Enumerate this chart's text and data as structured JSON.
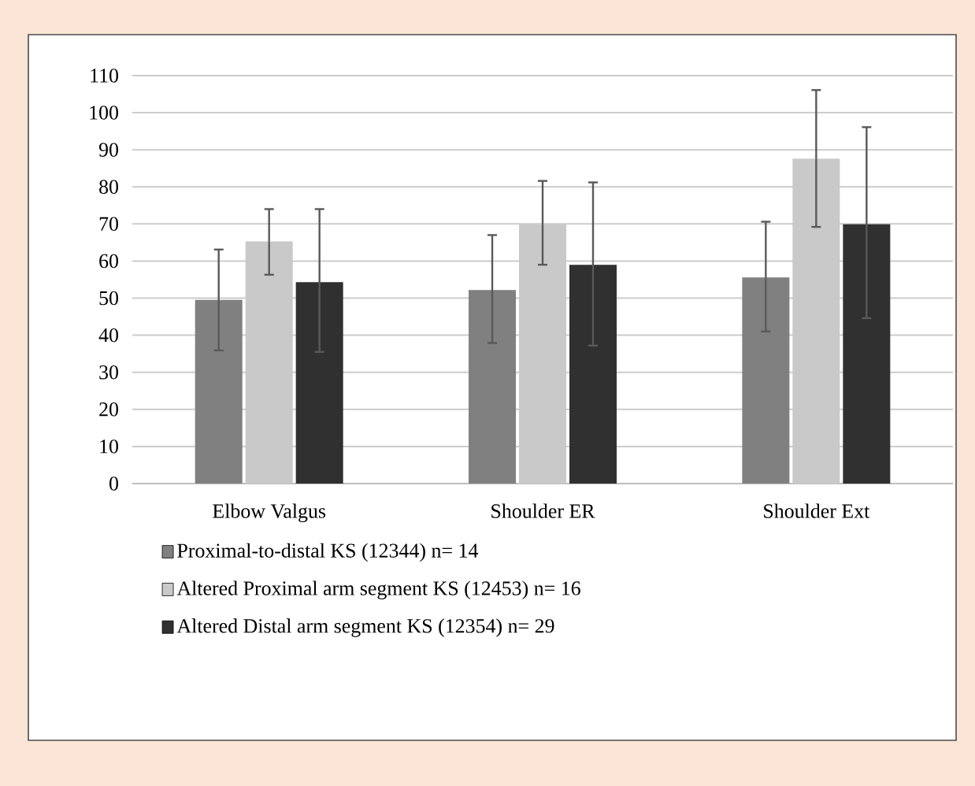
{
  "chart_data": {
    "type": "bar",
    "categories": [
      "Elbow Valgus",
      "Shoulder ER",
      "Shoulder Ext"
    ],
    "series": [
      {
        "name": "Proximal-to-distal KS (12344) n= 14",
        "color": "#808080",
        "values": [
          49.5,
          52.2,
          55.6
        ],
        "errors": [
          [
            35.9,
            63.1
          ],
          [
            37.9,
            67
          ],
          [
            41,
            70.6
          ]
        ]
      },
      {
        "name": "Altered Proximal arm segment KS (12453) n= 16",
        "color": "#c9c9c9",
        "values": [
          65.3,
          69.9,
          87.6
        ],
        "errors": [
          [
            56.3,
            74
          ],
          [
            59,
            81.6
          ],
          [
            69.2,
            106.1
          ]
        ]
      },
      {
        "name": "Altered Distal arm segment KS (12354) n= 29",
        "color": "#303030",
        "values": [
          54.3,
          59,
          69.9
        ],
        "errors": [
          [
            35.5,
            74
          ],
          [
            37.2,
            81.2
          ],
          [
            44.6,
            96.1
          ]
        ]
      }
    ],
    "ylim": [
      0,
      110
    ],
    "yticks": [
      0,
      10,
      20,
      30,
      40,
      50,
      60,
      70,
      80,
      90,
      100,
      110
    ],
    "grid": "y",
    "legend": "bottom"
  }
}
